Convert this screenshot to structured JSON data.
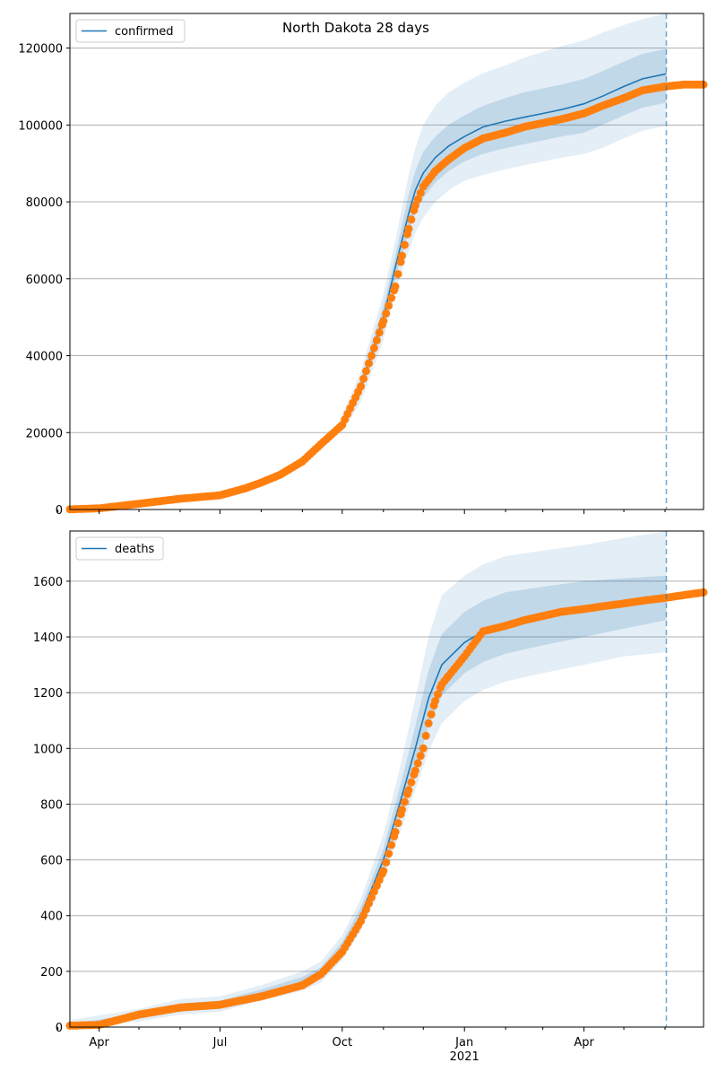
{
  "figure": {
    "title": "North Dakota 28 days"
  },
  "colors": {
    "model": "#1f77b4",
    "observed": "#ff7f0e",
    "grid": "#b0b0b0",
    "band": "#1f77b4"
  },
  "chart_data": [
    {
      "type": "line",
      "legend": [
        "confirmed"
      ],
      "legend_position": "top-left",
      "grid": "y",
      "x_ticks": [
        "Apr",
        "Jul",
        "Oct",
        "Jan",
        "Apr"
      ],
      "x_tick_year": "2021",
      "xlim": [
        "2020-03-10",
        "2021-06-30"
      ],
      "ylim": [
        0,
        129000
      ],
      "y_ticks": [
        "0",
        "20000",
        "40000",
        "60000",
        "80000",
        "100000",
        "120000"
      ],
      "forecast_line": "2021-06-02",
      "model_series": {
        "name": "confirmed",
        "x": [
          "2020-10-01",
          "2020-10-15",
          "2020-11-01",
          "2020-11-10",
          "2020-11-20",
          "2020-11-25",
          "2020-12-01",
          "2020-12-10",
          "2020-12-20",
          "2021-01-01",
          "2021-01-15",
          "2021-02-01",
          "2021-02-15",
          "2021-03-01",
          "2021-03-15",
          "2021-04-01",
          "2021-04-15",
          "2021-05-01",
          "2021-05-15",
          "2021-06-02"
        ],
        "y": [
          22000,
          32000,
          50000,
          63000,
          77000,
          83000,
          87500,
          91500,
          94500,
          97000,
          99500,
          101000,
          102000,
          103000,
          104000,
          105500,
          107500,
          110000,
          112000,
          113300
        ],
        "band_inner": {
          "lower": [
            21000,
            30000,
            47000,
            60000,
            72000,
            77000,
            81000,
            85000,
            88000,
            90500,
            92500,
            94000,
            95000,
            96000,
            97000,
            98000,
            100000,
            102500,
            104500,
            105800
          ],
          "upper": [
            23000,
            34000,
            53000,
            66000,
            82000,
            88000,
            93000,
            97000,
            100000,
            102500,
            105000,
            107000,
            108500,
            109500,
            110500,
            112000,
            114000,
            116500,
            118500,
            119800
          ]
        },
        "band_outer": {
          "lower": [
            20000,
            28000,
            44000,
            57000,
            67000,
            72000,
            76000,
            80000,
            83000,
            85500,
            87000,
            88500,
            89500,
            90500,
            91500,
            92500,
            94000,
            96500,
            98500,
            99800
          ],
          "upper": [
            24500,
            36000,
            56000,
            70000,
            87000,
            94000,
            100000,
            105000,
            108500,
            111000,
            113500,
            115500,
            117500,
            119000,
            120500,
            122000,
            124000,
            126000,
            127500,
            129000
          ]
        }
      },
      "observed_series": {
        "name": "observed",
        "x": [
          "2020-03-10",
          "2020-04-01",
          "2020-05-01",
          "2020-06-01",
          "2020-07-01",
          "2020-07-20",
          "2020-08-01",
          "2020-08-15",
          "2020-09-01",
          "2020-09-15",
          "2020-10-01",
          "2020-10-15",
          "2020-11-01",
          "2020-11-10",
          "2020-11-15",
          "2020-11-20",
          "2020-11-25",
          "2020-12-01",
          "2020-12-10",
          "2020-12-20",
          "2021-01-01",
          "2021-01-15",
          "2021-02-01",
          "2021-02-15",
          "2021-03-01",
          "2021-03-15",
          "2021-04-01",
          "2021-04-15",
          "2021-05-01",
          "2021-05-15",
          "2021-06-01",
          "2021-06-15",
          "2021-06-30"
        ],
        "y": [
          50,
          300,
          1500,
          2800,
          3700,
          5500,
          7000,
          9000,
          12500,
          17000,
          22000,
          32000,
          49000,
          58000,
          66000,
          73000,
          79000,
          84000,
          88000,
          91000,
          94000,
          96500,
          98000,
          99500,
          100500,
          101500,
          103000,
          105000,
          107000,
          109000,
          110000,
          110500,
          110500
        ]
      }
    },
    {
      "type": "line",
      "legend": [
        "deaths"
      ],
      "legend_position": "top-left",
      "grid": "y",
      "x_ticks": [
        "Apr",
        "Jul",
        "Oct",
        "Jan",
        "Apr"
      ],
      "x_tick_year": "2021",
      "xlim": [
        "2020-03-10",
        "2021-06-30"
      ],
      "ylim": [
        0,
        1780
      ],
      "y_ticks": [
        "0",
        "200",
        "400",
        "600",
        "800",
        "1000",
        "1200",
        "1400",
        "1600"
      ],
      "forecast_line": "2021-06-02",
      "model_series": {
        "name": "deaths",
        "x": [
          "2020-03-10",
          "2020-05-01",
          "2020-06-01",
          "2020-07-01",
          "2020-08-01",
          "2020-09-01",
          "2020-09-15",
          "2020-10-01",
          "2020-10-15",
          "2020-11-01",
          "2020-11-15",
          "2020-11-25",
          "2020-12-05",
          "2020-12-15",
          "2021-01-01",
          "2021-01-15",
          "2021-02-01",
          "2021-03-01",
          "2021-04-01",
          "2021-05-01",
          "2021-06-02"
        ],
        "y": [
          5,
          40,
          70,
          80,
          120,
          160,
          195,
          280,
          400,
          600,
          830,
          1000,
          1180,
          1300,
          1380,
          1420,
          1450,
          1480,
          1500,
          1520,
          1545
        ],
        "band_inner": {
          "lower": [
            0,
            30,
            55,
            65,
            105,
            140,
            175,
            255,
            370,
            560,
            770,
            920,
            1080,
            1190,
            1270,
            1310,
            1340,
            1370,
            1400,
            1430,
            1460
          ],
          "upper": [
            10,
            50,
            85,
            95,
            135,
            180,
            215,
            305,
            430,
            640,
            890,
            1080,
            1280,
            1410,
            1490,
            1530,
            1560,
            1580,
            1600,
            1610,
            1620
          ]
        },
        "band_outer": {
          "lower": [
            0,
            20,
            45,
            55,
            95,
            130,
            160,
            240,
            345,
            525,
            720,
            850,
            990,
            1090,
            1170,
            1210,
            1240,
            1270,
            1300,
            1330,
            1345
          ],
          "upper": [
            25,
            65,
            100,
            110,
            150,
            200,
            235,
            330,
            460,
            690,
            960,
            1180,
            1400,
            1550,
            1620,
            1660,
            1690,
            1710,
            1730,
            1755,
            1780
          ]
        }
      },
      "observed_series": {
        "name": "observed",
        "x": [
          "2020-03-10",
          "2020-04-01",
          "2020-05-01",
          "2020-06-01",
          "2020-07-01",
          "2020-08-01",
          "2020-09-01",
          "2020-09-15",
          "2020-10-01",
          "2020-10-15",
          "2020-11-01",
          "2020-11-10",
          "2020-11-15",
          "2020-11-20",
          "2020-11-25",
          "2020-12-01",
          "2020-12-05",
          "2020-12-10",
          "2020-12-15",
          "2020-12-20",
          "2021-01-01",
          "2021-01-15",
          "2021-02-01",
          "2021-02-15",
          "2021-03-01",
          "2021-03-15",
          "2021-04-01",
          "2021-04-15",
          "2021-05-01",
          "2021-05-15",
          "2021-06-01",
          "2021-06-15",
          "2021-06-30"
        ],
        "y": [
          5,
          8,
          45,
          70,
          80,
          110,
          150,
          190,
          270,
          380,
          560,
          700,
          780,
          850,
          920,
          1000,
          1090,
          1170,
          1230,
          1260,
          1330,
          1420,
          1440,
          1460,
          1475,
          1490,
          1500,
          1510,
          1520,
          1530,
          1540,
          1550,
          1560
        ]
      }
    }
  ]
}
